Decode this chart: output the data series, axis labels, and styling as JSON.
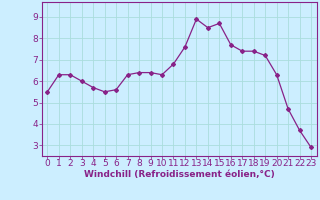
{
  "x": [
    0,
    1,
    2,
    3,
    4,
    5,
    6,
    7,
    8,
    9,
    10,
    11,
    12,
    13,
    14,
    15,
    16,
    17,
    18,
    19,
    20,
    21,
    22,
    23
  ],
  "y": [
    5.5,
    6.3,
    6.3,
    6.0,
    5.7,
    5.5,
    5.6,
    6.3,
    6.4,
    6.4,
    6.3,
    6.8,
    7.6,
    8.9,
    8.5,
    8.7,
    7.7,
    7.4,
    7.4,
    7.2,
    6.3,
    4.7,
    3.7,
    2.9
  ],
  "line_color": "#882288",
  "marker": "D",
  "marker_size": 2.0,
  "background_color": "#cceeff",
  "grid_color": "#aadddd",
  "xlabel": "Windchill (Refroidissement éolien,°C)",
  "xlabel_fontsize": 6.5,
  "xtick_labels": [
    "0",
    "1",
    "2",
    "3",
    "4",
    "5",
    "6",
    "7",
    "8",
    "9",
    "10",
    "11",
    "12",
    "13",
    "14",
    "15",
    "16",
    "17",
    "18",
    "19",
    "20",
    "21",
    "22",
    "23"
  ],
  "ytick_values": [
    3,
    4,
    5,
    6,
    7,
    8,
    9
  ],
  "ylim": [
    2.5,
    9.7
  ],
  "xlim": [
    -0.5,
    23.5
  ],
  "tick_fontsize": 6.5,
  "border_color": "#882288"
}
